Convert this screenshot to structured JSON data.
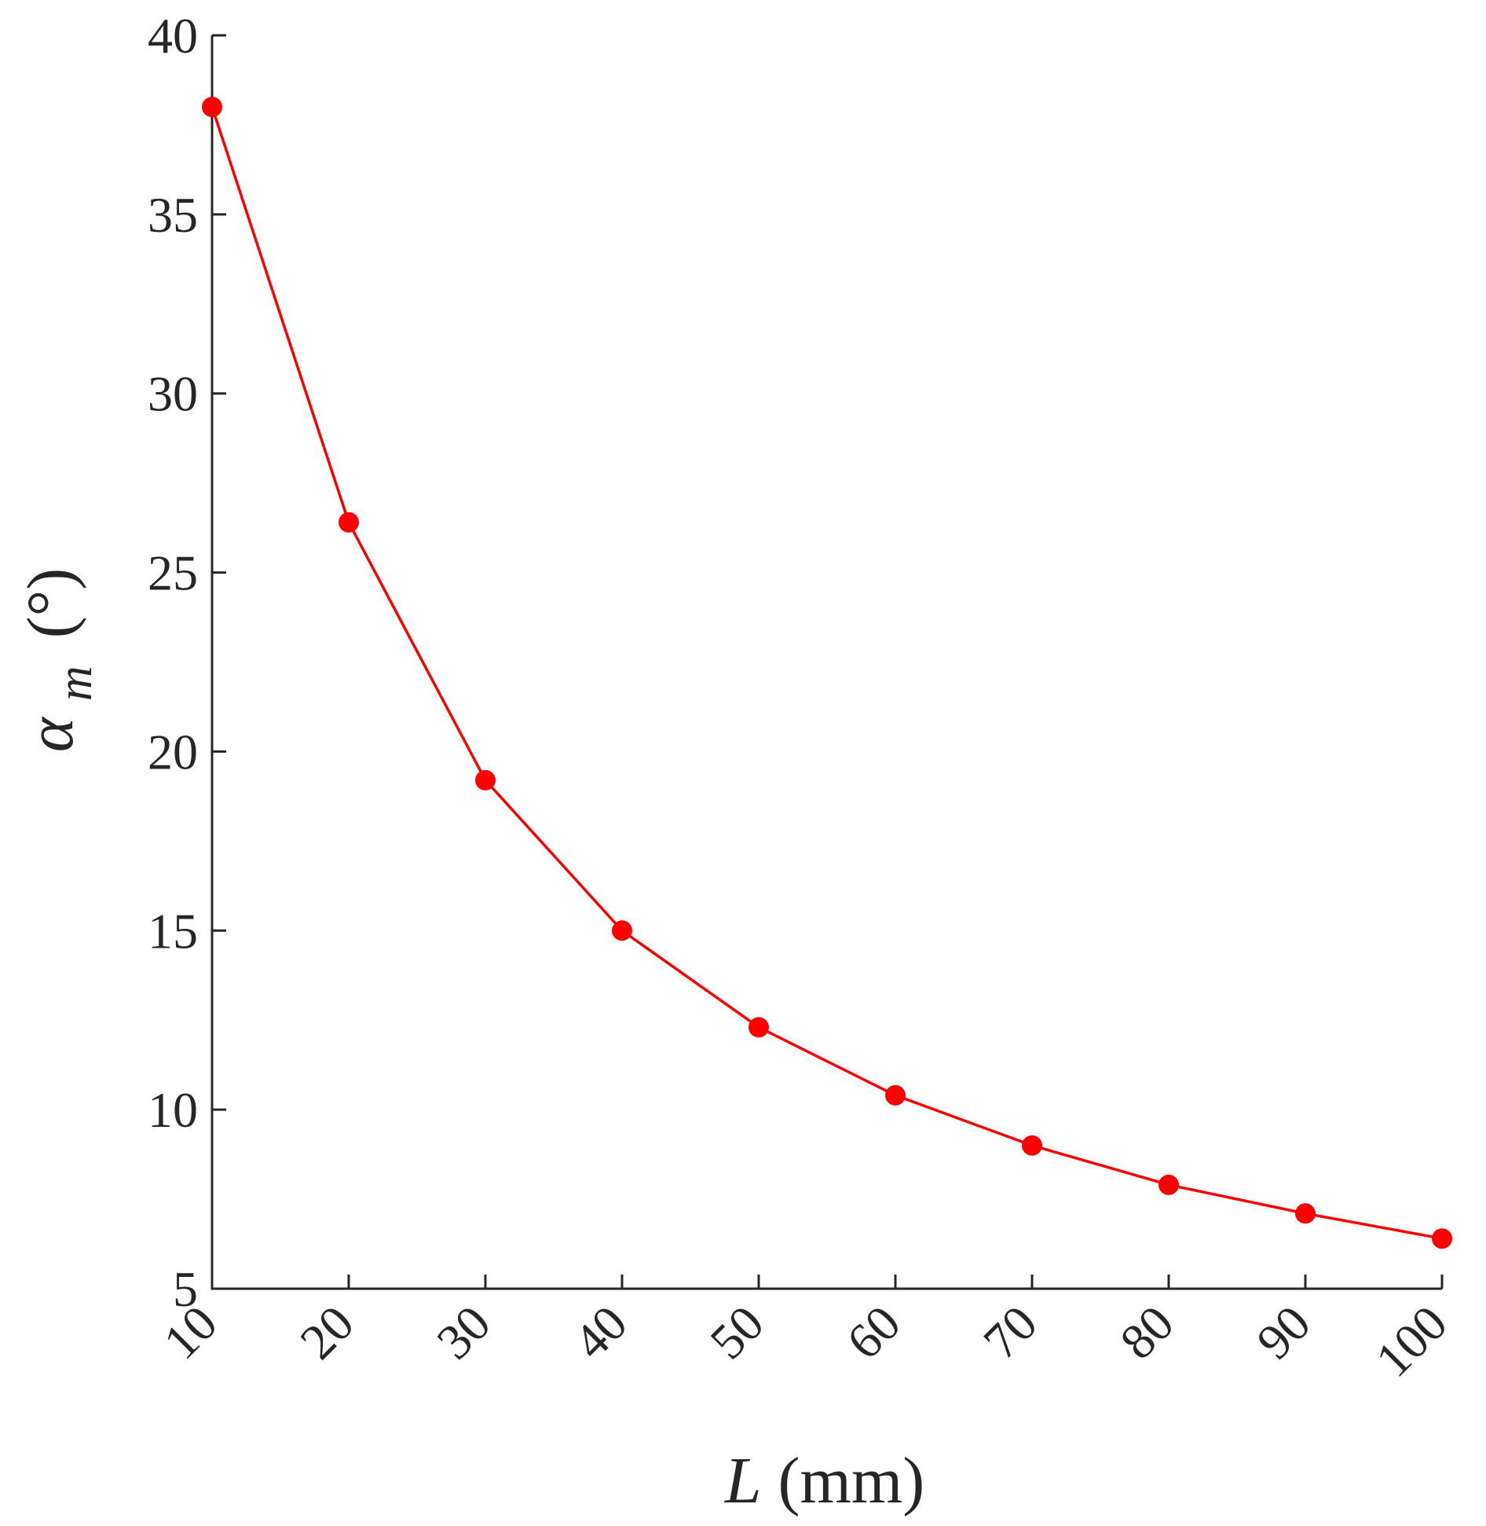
{
  "chart_data": {
    "type": "line",
    "x": [
      10,
      20,
      30,
      40,
      50,
      60,
      70,
      80,
      90,
      100
    ],
    "series": [
      {
        "values": [
          38.0,
          26.4,
          19.2,
          15.0,
          12.3,
          10.4,
          9.0,
          7.9,
          7.1,
          6.4
        ]
      }
    ],
    "xlabel": {
      "var": "L",
      "unit": "(mm)"
    },
    "ylabel": {
      "var": "α",
      "sub": "m",
      "unit": "(°)"
    },
    "xlim": [
      10,
      100
    ],
    "ylim": [
      5,
      40
    ],
    "xticks": [
      10,
      20,
      30,
      40,
      50,
      60,
      70,
      80,
      90,
      100
    ],
    "yticks": [
      5,
      10,
      15,
      20,
      25,
      30,
      35,
      40
    ],
    "xtick_rotation_deg": 45,
    "grid": false,
    "legend": "none",
    "colors": {
      "series": "#ff0000",
      "axis": "#262626"
    }
  }
}
